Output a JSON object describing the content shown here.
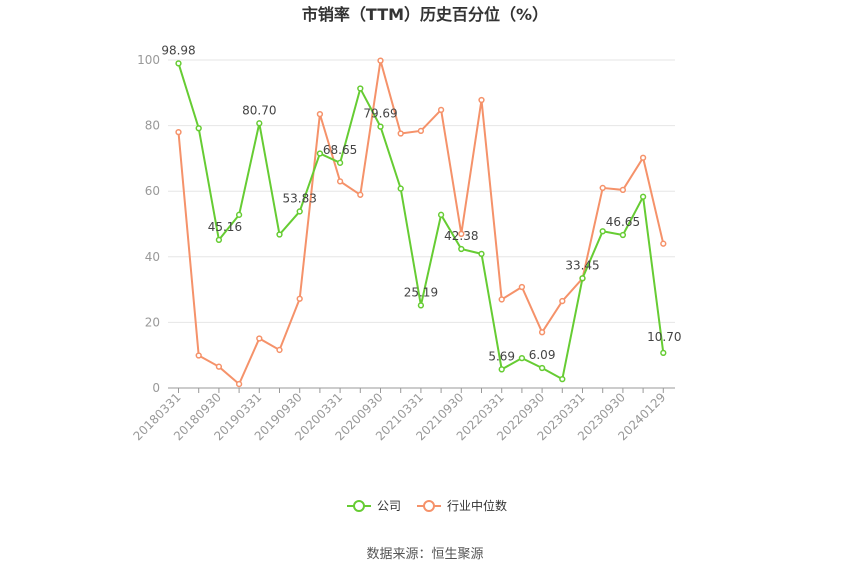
{
  "chart_data": {
    "type": "line",
    "title": "市销率（TTM）历史百分位（%）",
    "xlabel": "",
    "ylabel": "",
    "ylim": [
      0,
      100
    ],
    "yticks": [
      0,
      20,
      40,
      60,
      80,
      100
    ],
    "x": [
      "20180331",
      "20180630",
      "20180930",
      "20181231",
      "20190331",
      "20190630",
      "20190930",
      "20191231",
      "20200331",
      "20200630",
      "20200930",
      "20201231",
      "20210331",
      "20210630",
      "20210930",
      "20211231",
      "20220331",
      "20220630",
      "20220930",
      "20221231",
      "20230331",
      "20230630",
      "20230930",
      "20231231",
      "20240129"
    ],
    "x_tick_labels": [
      "20180331",
      "20180930",
      "20190331",
      "20190930",
      "20200331",
      "20200930",
      "20210331",
      "20210930",
      "20220331",
      "20220930",
      "20230331",
      "20230930",
      "20240129"
    ],
    "legend_position": "bottom",
    "grid": true,
    "series": [
      {
        "name": "公司",
        "color": "#66cc33",
        "values": [
          98.98,
          79.2,
          45.16,
          52.8,
          80.7,
          46.8,
          53.83,
          71.5,
          68.65,
          91.3,
          79.69,
          60.8,
          25.19,
          52.8,
          42.38,
          40.9,
          5.69,
          9.1,
          6.09,
          2.7,
          33.45,
          47.8,
          46.65,
          58.3,
          10.7
        ],
        "labels": {
          "0": "98.98",
          "2": "45.16",
          "4": "80.70",
          "6": "53.83",
          "8": "68.65",
          "10": "79.69",
          "12": "25.19",
          "14": "42.38",
          "16": "5.69",
          "18": "6.09",
          "20": "33.45",
          "22": "46.65",
          "24": "10.70"
        }
      },
      {
        "name": "行业中位数",
        "color": "#f5926a",
        "values": [
          78.0,
          9.9,
          6.5,
          1.2,
          15.1,
          11.6,
          27.2,
          83.5,
          63.0,
          58.9,
          99.8,
          77.6,
          78.4,
          84.8,
          47.0,
          87.8,
          27.0,
          30.8,
          17.0,
          26.5,
          33.4,
          61.0,
          60.4,
          70.2,
          44.0
        ]
      }
    ]
  },
  "source_text": "数据来源：恒生聚源"
}
